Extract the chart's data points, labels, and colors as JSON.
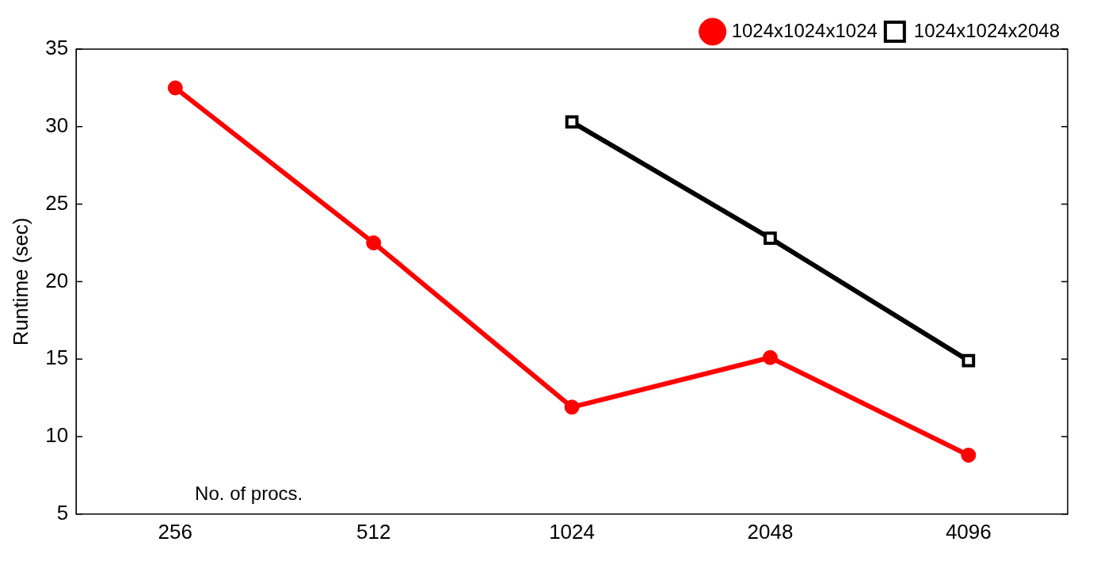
{
  "chart_data": {
    "type": "line",
    "xlabel": "No. of procs.",
    "ylabel": "Runtime (sec)",
    "categories": [
      "256",
      "512",
      "1024",
      "2048",
      "4096"
    ],
    "series": [
      {
        "name": "1024x1024x1024",
        "color": "#ff0000",
        "marker": "circle",
        "values": [
          32.5,
          22.5,
          11.9,
          15.1,
          8.8
        ]
      },
      {
        "name": "1024x1024x2048",
        "color": "#000000",
        "marker": "square",
        "values": [
          null,
          null,
          30.3,
          22.8,
          14.9
        ]
      }
    ],
    "ylim": [
      5,
      35
    ],
    "yticks": [
      5,
      10,
      15,
      20,
      25,
      30,
      35
    ],
    "grid": false,
    "legend": "top right",
    "line_style": "solid"
  }
}
